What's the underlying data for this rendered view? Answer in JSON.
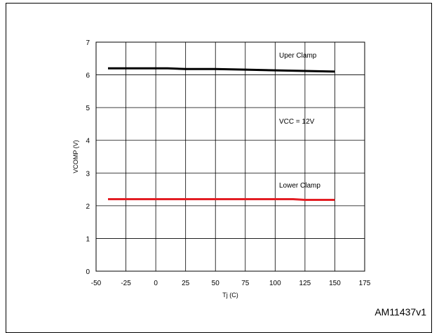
{
  "figure_id": "AM11437v1",
  "chart_data": {
    "type": "line",
    "title": "",
    "xlabel": "Tj (C)",
    "ylabel": "VCOMP (V)",
    "xlim": [
      -50,
      175
    ],
    "ylim": [
      0,
      7
    ],
    "xticks": [
      -50,
      -25,
      0,
      25,
      50,
      75,
      100,
      125,
      150,
      175
    ],
    "yticks": [
      0,
      1,
      2,
      3,
      4,
      5,
      6,
      7
    ],
    "grid": true,
    "annotations": [
      "Uper Clamp",
      "VCC = 12V",
      "Lower Clamp"
    ],
    "series": [
      {
        "color": "#000000",
        "x": [
          -40,
          -25,
          0,
          10,
          25,
          50,
          75,
          100,
          125,
          150
        ],
        "y": [
          6.2,
          6.2,
          6.2,
          6.2,
          6.18,
          6.18,
          6.16,
          6.14,
          6.12,
          6.1
        ]
      },
      {
        "color": "#e31e24",
        "x": [
          -40,
          -25,
          0,
          25,
          50,
          75,
          100,
          115,
          125,
          150
        ],
        "y": [
          2.2,
          2.2,
          2.2,
          2.2,
          2.2,
          2.2,
          2.2,
          2.2,
          2.18,
          2.18
        ]
      }
    ]
  }
}
